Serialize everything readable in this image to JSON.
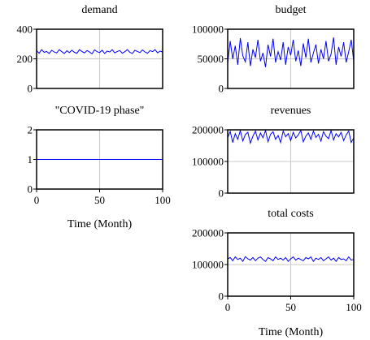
{
  "line_color": "#0000ff",
  "chart_data": [
    {
      "type": "line",
      "title": "demand",
      "x_range": [
        0,
        100
      ],
      "ylim": [
        0,
        400
      ],
      "yticks": [
        "400",
        "200",
        "0"
      ],
      "xticks": [],
      "xlabel": "",
      "grid": true,
      "base": 240,
      "amp": 14,
      "x": [
        0,
        2,
        4,
        6,
        8,
        10,
        12,
        14,
        16,
        18,
        20,
        22,
        24,
        26,
        28,
        30,
        32,
        34,
        36,
        38,
        40,
        42,
        44,
        46,
        48,
        50,
        52,
        54,
        56,
        58,
        60,
        62,
        64,
        66,
        68,
        70,
        72,
        74,
        76,
        78,
        80,
        82,
        84,
        86,
        88,
        90,
        92,
        94,
        96,
        98,
        100
      ],
      "y": [
        255,
        238,
        262,
        244,
        250,
        236,
        258,
        246,
        240,
        262,
        248,
        236,
        255,
        242,
        258,
        244,
        238,
        262,
        250,
        240,
        256,
        246,
        234,
        260,
        248,
        242,
        258,
        236,
        252,
        246,
        262,
        240,
        250,
        256,
        238,
        248,
        262,
        244,
        236,
        258,
        250,
        242,
        260,
        246,
        238,
        256,
        248,
        262,
        240,
        252,
        246
      ]
    },
    {
      "type": "line",
      "title": "budget",
      "x_range": [
        0,
        100
      ],
      "ylim": [
        0,
        100000
      ],
      "yticks": [
        "100000",
        "50000",
        "0"
      ],
      "xticks": [],
      "xlabel": "",
      "grid": true,
      "base": 58000,
      "amp": 18000,
      "x": [
        0,
        2,
        4,
        6,
        8,
        10,
        12,
        14,
        16,
        18,
        20,
        22,
        24,
        26,
        28,
        30,
        32,
        34,
        36,
        38,
        40,
        42,
        44,
        46,
        48,
        50,
        52,
        54,
        56,
        58,
        60,
        62,
        64,
        66,
        68,
        70,
        72,
        74,
        76,
        78,
        80,
        82,
        84,
        86,
        88,
        90,
        92,
        94,
        96,
        98,
        100
      ],
      "y": [
        42000,
        80000,
        50000,
        72000,
        40000,
        85000,
        55000,
        45000,
        78000,
        38000,
        66000,
        52000,
        82000,
        46000,
        60000,
        36000,
        74000,
        54000,
        84000,
        44000,
        62000,
        48000,
        78000,
        40000,
        70000,
        56000,
        82000,
        46000,
        64000,
        38000,
        76000,
        52000,
        84000,
        44000,
        60000,
        74000,
        42000,
        66000,
        50000,
        80000,
        46000,
        58000,
        86000,
        40000,
        70000,
        54000,
        78000,
        44000,
        62000,
        82000,
        46000
      ]
    },
    {
      "type": "line",
      "title": "\"COVID-19 phase\"",
      "x_range": [
        0,
        100
      ],
      "ylim": [
        0,
        2
      ],
      "yticks": [
        "2",
        "1",
        "0"
      ],
      "xticks": [
        "0",
        "50",
        "100"
      ],
      "xlabel": "Time (Month)",
      "grid": true,
      "x": [
        0,
        100
      ],
      "y": [
        1,
        1
      ]
    },
    {
      "type": "line",
      "title": "revenues",
      "x_range": [
        0,
        100
      ],
      "ylim": [
        0,
        200000
      ],
      "yticks": [
        "200000",
        "100000",
        "0"
      ],
      "xticks": [],
      "xlabel": "",
      "grid": true,
      "x": [
        0,
        2,
        4,
        6,
        8,
        10,
        12,
        14,
        16,
        18,
        20,
        22,
        24,
        26,
        28,
        30,
        32,
        34,
        36,
        38,
        40,
        42,
        44,
        46,
        48,
        50,
        52,
        54,
        56,
        58,
        60,
        62,
        64,
        66,
        68,
        70,
        72,
        74,
        76,
        78,
        80,
        82,
        84,
        86,
        88,
        90,
        92,
        94,
        96,
        98,
        100
      ],
      "y": [
        175000,
        195000,
        160000,
        188000,
        170000,
        198000,
        165000,
        185000,
        192000,
        158000,
        180000,
        196000,
        168000,
        190000,
        175000,
        198000,
        162000,
        186000,
        194000,
        170000,
        182000,
        160000,
        196000,
        178000,
        188000,
        166000,
        192000,
        174000,
        184000,
        198000,
        162000,
        180000,
        190000,
        170000,
        196000,
        176000,
        186000,
        164000,
        194000,
        180000,
        172000,
        198000,
        168000,
        188000,
        178000,
        192000,
        166000,
        184000,
        196000,
        160000,
        175000
      ]
    },
    {
      "type": "line",
      "title": "total costs",
      "x_range": [
        0,
        100
      ],
      "ylim": [
        0,
        200000
      ],
      "yticks": [
        "200000",
        "100000",
        "0"
      ],
      "xticks": [
        "0",
        "50",
        "100"
      ],
      "xlabel": "Time (Month)",
      "grid": true,
      "x": [
        0,
        2,
        4,
        6,
        8,
        10,
        12,
        14,
        16,
        18,
        20,
        22,
        24,
        26,
        28,
        30,
        32,
        34,
        36,
        38,
        40,
        42,
        44,
        46,
        48,
        50,
        52,
        54,
        56,
        58,
        60,
        62,
        64,
        66,
        68,
        70,
        72,
        74,
        76,
        78,
        80,
        82,
        84,
        86,
        88,
        90,
        92,
        94,
        96,
        98,
        100
      ],
      "y": [
        118000,
        122000,
        112000,
        124000,
        116000,
        120000,
        110000,
        125000,
        118000,
        114000,
        122000,
        112000,
        120000,
        124000,
        116000,
        110000,
        122000,
        118000,
        112000,
        124000,
        116000,
        120000,
        114000,
        122000,
        110000,
        118000,
        124000,
        114000,
        120000,
        116000,
        112000,
        122000,
        118000,
        124000,
        110000,
        120000,
        116000,
        122000,
        112000,
        118000,
        124000,
        114000,
        120000,
        110000,
        122000,
        116000,
        118000,
        112000,
        124000,
        114000,
        116000
      ]
    }
  ]
}
